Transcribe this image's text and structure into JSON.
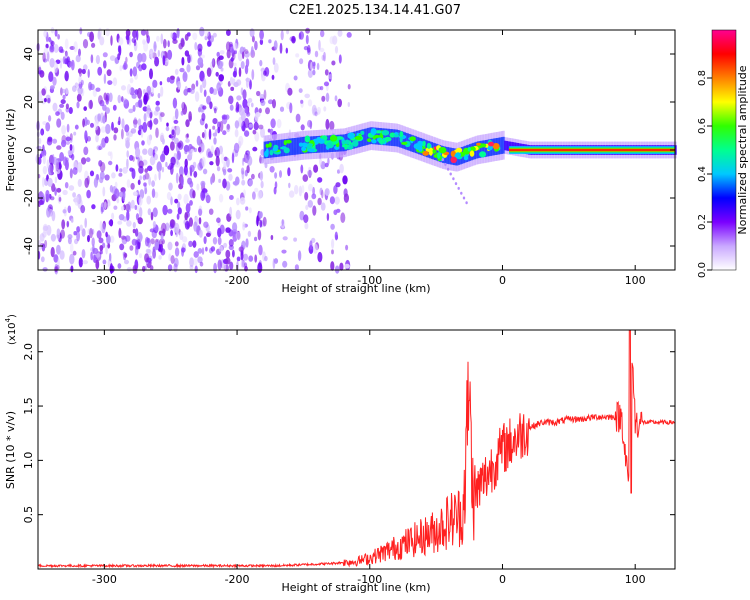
{
  "title": "C2E1.2025.134.14.41.G07",
  "chart_data": [
    {
      "type": "heatmap",
      "xlabel": "Height of straight line (km)",
      "ylabel": "Frequency (Hz)",
      "xlim": [
        -350,
        130
      ],
      "ylim": [
        -50,
        50
      ],
      "xticks": [
        -300,
        -200,
        -100,
        0,
        100
      ],
      "yticks": [
        -40,
        -20,
        0,
        20,
        40
      ],
      "colorbar": {
        "label": "Normalized spectral amplitude",
        "range": [
          0.0,
          1.0
        ],
        "ticks": [
          "0.0",
          "0.2",
          "0.4",
          "0.6",
          "0.8"
        ],
        "tick_values": [
          0.0,
          0.2,
          0.4,
          0.6,
          0.8
        ],
        "colors": [
          "#ffffff",
          "#c9a8ff",
          "#7a00ff",
          "#0000ff",
          "#00c8ff",
          "#00ff90",
          "#30ff00",
          "#ffff00",
          "#ff8000",
          "#ff0000",
          "#ff0090"
        ]
      },
      "features": [
        {
          "name": "noise",
          "x_range": [
            -350,
            -115
          ],
          "y_range": [
            -50,
            50
          ]
        },
        {
          "name": "signal_band",
          "x": [
            -180,
            -150,
            -120,
            -100,
            -80,
            -60,
            -45,
            -35,
            -20,
            0,
            20,
            60,
            90,
            100,
            130
          ],
          "y": [
            0,
            2,
            3,
            6,
            5,
            1,
            -2,
            -3,
            0,
            2,
            0,
            0,
            0,
            0,
            0
          ]
        }
      ]
    },
    {
      "type": "line",
      "xlabel": "Height of straight line (km)",
      "ylabel": "SNR (10 * v/v)",
      "multiplier": "(x10",
      "multiplier_exp": "4",
      "xlim": [
        -350,
        130
      ],
      "ylim": [
        0,
        2.2
      ],
      "xticks": [
        -300,
        -200,
        -100,
        0,
        100
      ],
      "yticks": [
        0.5,
        1.0,
        1.5,
        2.0
      ],
      "color": "#ff2020",
      "series": [
        {
          "x": [
            -350,
            -300,
            -250,
            -200,
            -170,
            -150,
            -130,
            -110,
            -100,
            -90,
            -80,
            -70,
            -60,
            -50,
            -40,
            -30,
            -25,
            -22,
            -20,
            -15,
            -10,
            -5,
            0,
            5,
            10,
            15,
            20,
            30,
            40,
            50,
            60,
            70,
            80,
            90,
            95,
            97,
            100,
            110,
            120,
            130
          ],
          "y": [
            0.03,
            0.03,
            0.03,
            0.03,
            0.03,
            0.04,
            0.05,
            0.07,
            0.1,
            0.15,
            0.2,
            0.25,
            0.3,
            0.35,
            0.45,
            0.5,
            1.55,
            0.6,
            0.7,
            0.8,
            0.9,
            1.0,
            1.1,
            1.15,
            1.2,
            1.25,
            1.3,
            1.35,
            1.35,
            1.38,
            1.38,
            1.4,
            1.4,
            1.4,
            0.75,
            2.2,
            1.35,
            1.35,
            1.35,
            1.35
          ]
        }
      ]
    }
  ]
}
